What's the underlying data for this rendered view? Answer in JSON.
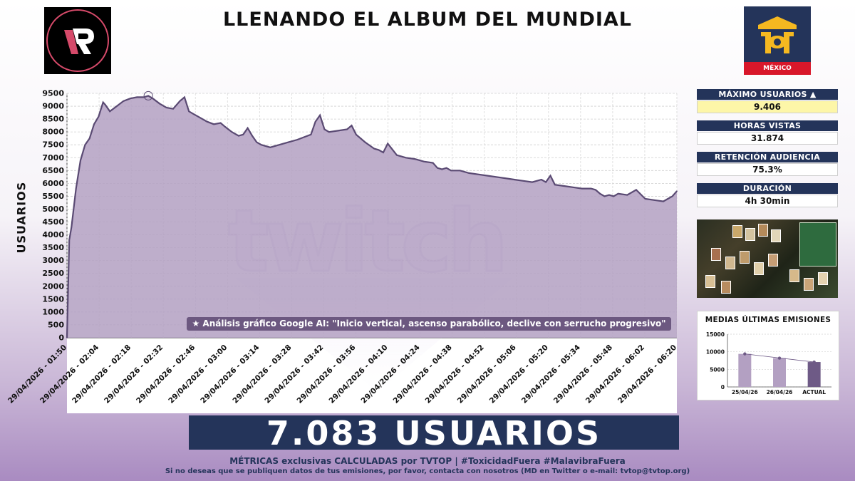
{
  "title": "LLENANDO EL ALBUM DEL MUNDIAL",
  "logo_right_label": "MÉXICO",
  "ylabel": "USUARIOS",
  "annotation": "★ Análisis gráfico Google AI: \"Inicio vertical, ascenso parabólico, declive con serrucho progresivo\"",
  "stats": [
    {
      "label": "MÁXIMO USUARIOS ▲",
      "value": "9.406",
      "highlight": "#fdf6a8"
    },
    {
      "label": "HORAS VISTAS",
      "value": "31.874",
      "highlight": "#ffffff"
    },
    {
      "label": "RETENCIÓN AUDIENCIA",
      "value": "75.3%",
      "highlight": "#ffffff"
    },
    {
      "label": "DURACIÓN",
      "value": "4h 30min",
      "highlight": "#ffffff"
    }
  ],
  "banner": "7.083 USUARIOS",
  "footer_line1": "MÉTRICAS exclusivas CALCULADAS por TVTOP | #ToxicidadFuera #MalavibraFuera",
  "footer_line2": "Si no deseas que se publiquen datos de tus emisiones, por favor, contacta con nosotros (MD en Twitter o e-mail: tvtop@tvtop.org)",
  "colors": {
    "accent": "#24345a",
    "line": "#5a4a73",
    "fill": "#b3a0c2",
    "highlight": "#fdf6a8",
    "brand_red": "#d8172a"
  },
  "chart_data": [
    {
      "type": "area",
      "ylabel": "USUARIOS",
      "ylim": [
        0,
        9500
      ],
      "yticks": [
        0,
        500,
        1000,
        1500,
        2000,
        2500,
        3000,
        3500,
        4000,
        4500,
        5000,
        5500,
        6000,
        6500,
        7000,
        7500,
        8000,
        8500,
        9000,
        9500
      ],
      "xticks": [
        "29/04/2026 - 01:50",
        "29/04/2026 - 02:04",
        "29/04/2026 - 02:18",
        "29/04/2026 - 02:32",
        "29/04/2026 - 02:46",
        "29/04/2026 - 03:00",
        "29/04/2026 - 03:14",
        "29/04/2026 - 03:28",
        "29/04/2026 - 03:42",
        "29/04/2026 - 03:56",
        "29/04/2026 - 04:10",
        "29/04/2026 - 04:24",
        "29/04/2026 - 04:38",
        "29/04/2026 - 04:52",
        "29/04/2026 - 05:06",
        "29/04/2026 - 05:20",
        "29/04/2026 - 05:34",
        "29/04/2026 - 05:48",
        "29/04/2026 - 06:02",
        "29/04/2026 - 06:20"
      ],
      "grid": true,
      "max_marker": {
        "x": "02:26",
        "y": 9406
      },
      "x": [
        "01:50",
        "01:51",
        "01:52",
        "01:54",
        "01:56",
        "01:58",
        "02:00",
        "02:02",
        "02:04",
        "02:06",
        "02:07",
        "02:09",
        "02:12",
        "02:15",
        "02:18",
        "02:21",
        "02:24",
        "02:26",
        "02:28",
        "02:31",
        "02:34",
        "02:37",
        "02:40",
        "02:42",
        "02:44",
        "02:46",
        "02:49",
        "02:52",
        "02:55",
        "02:58",
        "03:00",
        "03:03",
        "03:06",
        "03:08",
        "03:10",
        "03:12",
        "03:14",
        "03:16",
        "03:20",
        "03:24",
        "03:28",
        "03:32",
        "03:35",
        "03:38",
        "03:40",
        "03:42",
        "03:44",
        "03:46",
        "03:50",
        "03:54",
        "03:56",
        "03:58",
        "04:02",
        "04:06",
        "04:08",
        "04:10",
        "04:12",
        "04:16",
        "04:20",
        "04:24",
        "04:28",
        "04:32",
        "04:34",
        "04:36",
        "04:38",
        "04:40",
        "04:44",
        "04:48",
        "04:52",
        "04:56",
        "05:00",
        "05:04",
        "05:08",
        "05:12",
        "05:16",
        "05:20",
        "05:22",
        "05:24",
        "05:26",
        "05:30",
        "05:34",
        "05:38",
        "05:42",
        "05:44",
        "05:46",
        "05:48",
        "05:50",
        "05:52",
        "05:54",
        "05:58",
        "06:02",
        "06:06",
        "06:10",
        "06:14",
        "06:16",
        "06:18",
        "06:20"
      ],
      "y": [
        0,
        3800,
        4300,
        5800,
        6900,
        7500,
        7750,
        8300,
        8600,
        9150,
        9050,
        8800,
        9000,
        9200,
        9300,
        9350,
        9350,
        9406,
        9300,
        9100,
        8950,
        8900,
        9200,
        9350,
        8800,
        8700,
        8550,
        8400,
        8300,
        8350,
        8200,
        8000,
        7850,
        7900,
        8150,
        7850,
        7600,
        7500,
        7400,
        7500,
        7600,
        7700,
        7800,
        7900,
        8400,
        8650,
        8100,
        8000,
        8050,
        8100,
        8250,
        7900,
        7600,
        7350,
        7300,
        7200,
        7550,
        7100,
        7000,
        6950,
        6850,
        6800,
        6600,
        6550,
        6600,
        6500,
        6500,
        6400,
        6350,
        6300,
        6250,
        6200,
        6150,
        6100,
        6050,
        6150,
        6050,
        6300,
        5950,
        5900,
        5850,
        5800,
        5800,
        5750,
        5600,
        5500,
        5550,
        5500,
        5600,
        5550,
        5750,
        5400,
        5350,
        5300,
        5400,
        5500,
        5700
      ]
    },
    {
      "type": "bar",
      "title": "MEDIAS ÚLTIMAS EMISIONES",
      "categories": [
        "25/04/26",
        "26/04/26",
        "ACTUAL"
      ],
      "values": [
        9400,
        8200,
        7083
      ],
      "ylim": [
        0,
        15000
      ],
      "yticks": [
        0,
        5000,
        10000,
        15000
      ],
      "trend_line": true
    }
  ]
}
